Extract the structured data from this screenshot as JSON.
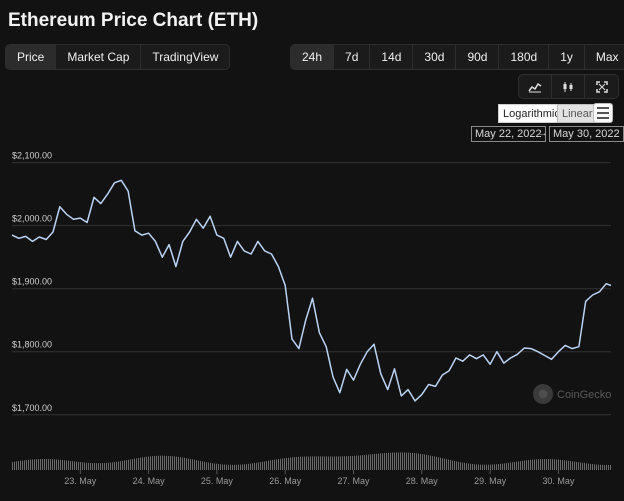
{
  "title": "Ethereum Price Chart (ETH)",
  "view_tabs": [
    {
      "label": "Price",
      "active": true
    },
    {
      "label": "Market Cap",
      "active": false
    },
    {
      "label": "TradingView",
      "active": false
    }
  ],
  "range_tabs": [
    {
      "label": "24h",
      "active": true
    },
    {
      "label": "7d",
      "active": false
    },
    {
      "label": "14d",
      "active": false
    },
    {
      "label": "30d",
      "active": false
    },
    {
      "label": "90d",
      "active": false
    },
    {
      "label": "180d",
      "active": false
    },
    {
      "label": "1y",
      "active": false
    },
    {
      "label": "Max",
      "active": false
    }
  ],
  "chart_icons": [
    "line-chart-icon",
    "candlestick-icon",
    "fullscreen-icon"
  ],
  "scale": {
    "logarithmic": "Logarithmic",
    "linear": "Linear",
    "selected": "Logarithmic"
  },
  "date_range": {
    "from": "May 22, 2022",
    "arrow": "→",
    "to": "May 30, 2022"
  },
  "watermark": "CoinGecko",
  "colors": {
    "line": "#b9d4f5",
    "volume": "#6b6b6b",
    "background": "#121212",
    "grid": "#333333"
  },
  "chart_data": {
    "type": "line",
    "ylim": [
      1660,
      2120
    ],
    "xlim": [
      22.0,
      30.77
    ],
    "ytick_values": [
      1700,
      1800,
      1900,
      2000,
      2100
    ],
    "ytick_labels": [
      "$1,700.00",
      "$1,800.00",
      "$1,900.00",
      "$2,000.00",
      "$2,100.00"
    ],
    "xtick_values": [
      23,
      24,
      25,
      26,
      27,
      28,
      29,
      30
    ],
    "xtick_labels": [
      "23. May",
      "24. May",
      "25. May",
      "26. May",
      "27. May",
      "28. May",
      "29. May",
      "30. May"
    ],
    "series": [
      {
        "x": [
          22.0,
          22.1,
          22.2,
          22.3,
          22.4,
          22.5,
          22.6,
          22.7,
          22.8,
          22.9,
          23.0,
          23.1,
          23.2,
          23.3,
          23.4,
          23.5,
          23.6,
          23.7,
          23.8,
          23.9,
          24.0,
          24.1,
          24.2,
          24.3,
          24.4,
          24.5,
          24.6,
          24.7,
          24.8,
          24.9,
          25.0,
          25.1,
          25.2,
          25.3,
          25.4,
          25.5,
          25.6,
          25.7,
          25.8,
          25.9,
          26.0,
          26.1,
          26.2,
          26.3,
          26.4,
          26.5,
          26.6,
          26.7,
          26.8,
          26.9,
          27.0,
          27.1,
          27.2,
          27.3,
          27.4,
          27.5,
          27.6,
          27.7,
          27.8,
          27.9,
          28.0,
          28.1,
          28.2,
          28.3,
          28.4,
          28.5,
          28.6,
          28.7,
          28.8,
          28.9,
          29.0,
          29.1,
          29.2,
          29.3,
          29.4,
          29.5,
          29.6,
          29.7,
          29.8,
          29.9,
          30.0,
          30.1,
          30.2,
          30.3,
          30.4,
          30.5,
          30.6,
          30.7,
          30.77
        ],
        "y": [
          1985,
          1980,
          1983,
          1975,
          1982,
          1978,
          1990,
          2030,
          2018,
          2010,
          2012,
          2005,
          2045,
          2035,
          2050,
          2068,
          2072,
          2055,
          1992,
          1985,
          1988,
          1975,
          1950,
          1970,
          1935,
          1975,
          1990,
          2010,
          1996,
          2015,
          1985,
          1980,
          1950,
          1975,
          1960,
          1955,
          1975,
          1960,
          1955,
          1935,
          1905,
          1820,
          1805,
          1850,
          1885,
          1830,
          1808,
          1760,
          1735,
          1772,
          1755,
          1780,
          1800,
          1812,
          1765,
          1740,
          1773,
          1730,
          1740,
          1722,
          1732,
          1748,
          1745,
          1763,
          1770,
          1790,
          1785,
          1795,
          1789,
          1795,
          1780,
          1800,
          1782,
          1790,
          1796,
          1806,
          1805,
          1800,
          1794,
          1788,
          1800,
          1810,
          1805,
          1808,
          1880,
          1890,
          1895,
          1908,
          1905
        ]
      }
    ]
  }
}
